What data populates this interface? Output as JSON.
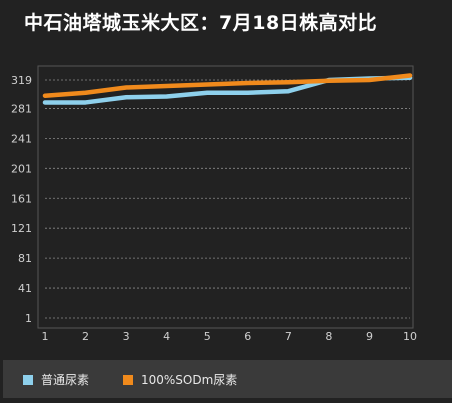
{
  "title": "中石油塔城玉米大区：7月18日株高对比",
  "chart_data": {
    "type": "line",
    "title": "中石油塔城玉米大区：7月18日株高对比",
    "x": [
      1,
      2,
      3,
      4,
      5,
      6,
      7,
      8,
      9,
      10
    ],
    "y_ticks": [
      1,
      41,
      81,
      121,
      161,
      201,
      241,
      281,
      319
    ],
    "ylim": [
      1,
      319
    ],
    "grid": true,
    "legend_position": "bottom",
    "series": [
      {
        "name": "普通尿素",
        "color": "#8ed0ec",
        "values": [
          289,
          289,
          296,
          297,
          302,
          302,
          304,
          319,
          321,
          322
        ]
      },
      {
        "name": "100%SODm尿素",
        "color": "#f08a1c",
        "values": [
          298,
          302,
          309,
          311,
          313,
          315,
          316,
          318,
          319,
          325
        ]
      }
    ]
  }
}
